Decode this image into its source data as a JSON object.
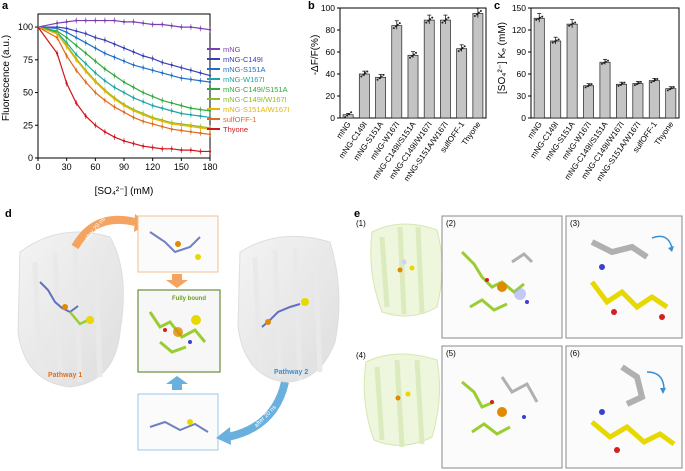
{
  "panels": {
    "a": "a",
    "b": "b",
    "c": "c",
    "d": "d",
    "e": "e"
  },
  "chart_data": [
    {
      "type": "line",
      "panel": "a",
      "ylabel": "Fluorescence (a.u.)",
      "xlabel": "[SO₄²⁻] (mM)",
      "xlim": [
        0,
        180
      ],
      "ylim": [
        0,
        110
      ],
      "xticks": [
        "0",
        "30",
        "60",
        "90",
        "120",
        "150",
        "180"
      ],
      "yticks": [
        "0",
        "25",
        "50",
        "75",
        "100"
      ],
      "x": [
        0,
        20,
        30,
        40,
        50,
        60,
        70,
        80,
        90,
        100,
        110,
        120,
        130,
        140,
        150,
        160,
        170,
        180
      ],
      "series": [
        {
          "name": "mNG",
          "color": "#7a3fb0",
          "values": [
            100,
            103,
            104,
            105,
            105,
            105,
            105,
            105,
            104,
            104,
            103,
            102,
            102,
            101,
            100,
            100,
            99,
            98
          ]
        },
        {
          "name": "mNG-C149I",
          "color": "#3a3fb8",
          "values": [
            100,
            100,
            99,
            97,
            95,
            92,
            90,
            87,
            84,
            81,
            78,
            76,
            73,
            71,
            69,
            67,
            65,
            63
          ]
        },
        {
          "name": "mNG-S151A",
          "color": "#1f6fc8",
          "values": [
            100,
            99,
            96,
            92,
            88,
            84,
            80,
            77,
            74,
            71,
            69,
            67,
            65,
            63,
            61,
            60,
            59,
            58
          ]
        },
        {
          "name": "mNG-W167I",
          "color": "#1aa6a6",
          "values": [
            100,
            96,
            88,
            79,
            72,
            65,
            59,
            54,
            50,
            46,
            43,
            40,
            38,
            36,
            34,
            33,
            32,
            31
          ]
        },
        {
          "name": "mNG-C149I/S151A",
          "color": "#2faa3a",
          "values": [
            100,
            97,
            92,
            86,
            80,
            74,
            68,
            63,
            58,
            54,
            50,
            47,
            44,
            42,
            40,
            38,
            37,
            36
          ]
        },
        {
          "name": "mNG-C149I/W167I",
          "color": "#8dbb22",
          "values": [
            100,
            95,
            86,
            76,
            67,
            59,
            52,
            46,
            41,
            37,
            34,
            31,
            29,
            27,
            26,
            25,
            24,
            23
          ]
        },
        {
          "name": "mNG-S151A/W167I",
          "color": "#e8b400",
          "values": [
            100,
            95,
            85,
            75,
            66,
            58,
            51,
            45,
            40,
            36,
            33,
            30,
            28,
            26,
            25,
            24,
            23,
            22
          ]
        },
        {
          "name": "sulfOFF-1",
          "color": "#e06a1a",
          "values": [
            100,
            92,
            78,
            67,
            58,
            50,
            44,
            39,
            35,
            31,
            28,
            26,
            24,
            22,
            21,
            20,
            19,
            18
          ]
        },
        {
          "name": "Thyone",
          "color": "#d0151c",
          "values": [
            100,
            80,
            57,
            42,
            32,
            25,
            20,
            16,
            13,
            11,
            9,
            8,
            7,
            7,
            6,
            6,
            5,
            5
          ]
        }
      ]
    },
    {
      "type": "bar",
      "panel": "b",
      "ylabel": "-ΔF/F(%)",
      "ylim": [
        0,
        100
      ],
      "yticks": [
        "0",
        "20",
        "40",
        "60",
        "80",
        "100"
      ],
      "categories": [
        "mNG",
        "mNG-C149I",
        "mNG-S151A",
        "mNG-W167I",
        "mNG-C149I/S151A",
        "mNG-C149I/W167I",
        "mNG-S151A/W167I",
        "sulfOFF-1",
        "Thyone"
      ],
      "values": [
        3,
        40,
        37,
        84,
        57,
        89,
        89,
        63,
        95
      ]
    },
    {
      "type": "bar",
      "panel": "c",
      "ylabel": "[SO₄²⁻] Kₑ (mM)",
      "ylim": [
        0,
        150
      ],
      "yticks": [
        "0",
        "30",
        "60",
        "90",
        "120",
        "150"
      ],
      "categories": [
        "mNG",
        "mNG-C149I",
        "mNG-S151A",
        "mNG-W167I",
        "mNG-C149I/S151A",
        "mNG-C149I/W167I",
        "mNG-S151A/W167I",
        "sulfOFF-1",
        "Thyone"
      ],
      "values": [
        136,
        105,
        128,
        44,
        76,
        46,
        47,
        51,
        40
      ]
    }
  ],
  "d": {
    "after_20ns_1": "after 20 ns",
    "after_20ns_2": "after 20 ns",
    "pathway1": "Pathway 1",
    "pathway2": "Pathway 2",
    "fully_bound": "Fully bound"
  },
  "e": {
    "sub1": "(1)",
    "sub2": "(2)",
    "sub3": "(3)",
    "sub4": "(4)",
    "sub5": "(5)",
    "sub6": "(6)"
  },
  "colors": {
    "protein": "#c8c8c8",
    "ligand_green": "#9acd32",
    "chromophore": "#e6d800",
    "sulfate_orange": "#e08a00",
    "arrow_orange": "#f4a460",
    "arrow_blue": "#6ab0de",
    "arrow_curve": "#3a8fd0",
    "nitrogen": "#3a3fd0",
    "oxygen": "#d42020"
  }
}
